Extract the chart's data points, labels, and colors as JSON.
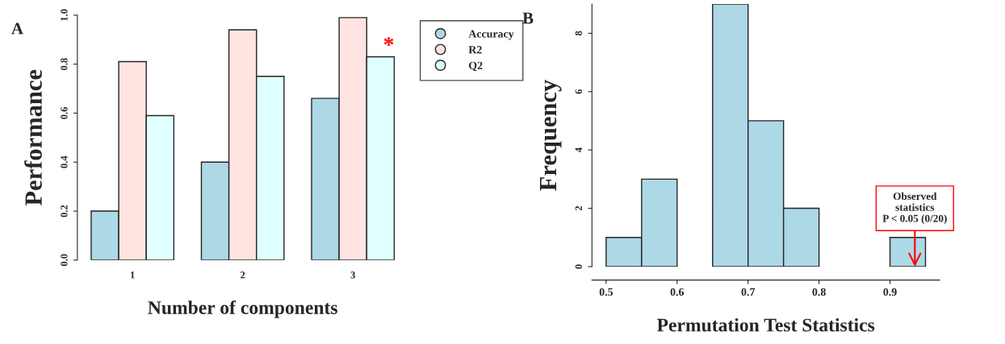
{
  "chart_data": [
    {
      "type": "bar",
      "title": "A",
      "xlabel": "Number of components",
      "ylabel": "Performance",
      "categories": [
        "1",
        "2",
        "3"
      ],
      "series": [
        {
          "name": "Accuracy",
          "color": "#add8e6",
          "values": [
            0.2,
            0.4,
            0.66
          ]
        },
        {
          "name": "R2",
          "color": "#ffe4e1",
          "values": [
            0.81,
            0.94,
            0.99
          ]
        },
        {
          "name": "Q2",
          "color": "#e0ffff",
          "values": [
            0.59,
            0.75,
            0.83
          ]
        }
      ],
      "ylim": [
        0,
        1
      ],
      "yticks": [
        {
          "value": 0,
          "label": "0.0"
        },
        0.2,
        0.4,
        0.6,
        0.8,
        {
          "value": 1,
          "label": "1.0"
        }
      ],
      "grid": false,
      "legend": "top right",
      "marker": "circle",
      "annotations": [
        "*"
      ]
    },
    {
      "type": "histogram",
      "title": "B",
      "xlabel": "Permutation Test Statistics",
      "ylabel": "Frequency",
      "bins": [
        0.5,
        0.55,
        0.6,
        0.65,
        0.7,
        0.75,
        0.8,
        0.85,
        0.9,
        0.95
      ],
      "values": [
        1,
        3,
        0,
        9,
        5,
        2,
        0,
        0,
        1
      ],
      "color": "#add8e6",
      "xlim": [
        0.48,
        0.97
      ],
      "xticks": [
        0.5,
        0.6,
        0.7,
        0.8,
        0.9
      ],
      "ylim": [
        0,
        9
      ],
      "yticks": [
        0,
        2,
        4,
        6,
        8
      ],
      "grid": false,
      "annotations": [
        {
          "text": "Observed\nstatistics\nP < 0.05 (0/20)",
          "x": 0.935,
          "y": 0
        }
      ]
    }
  ]
}
